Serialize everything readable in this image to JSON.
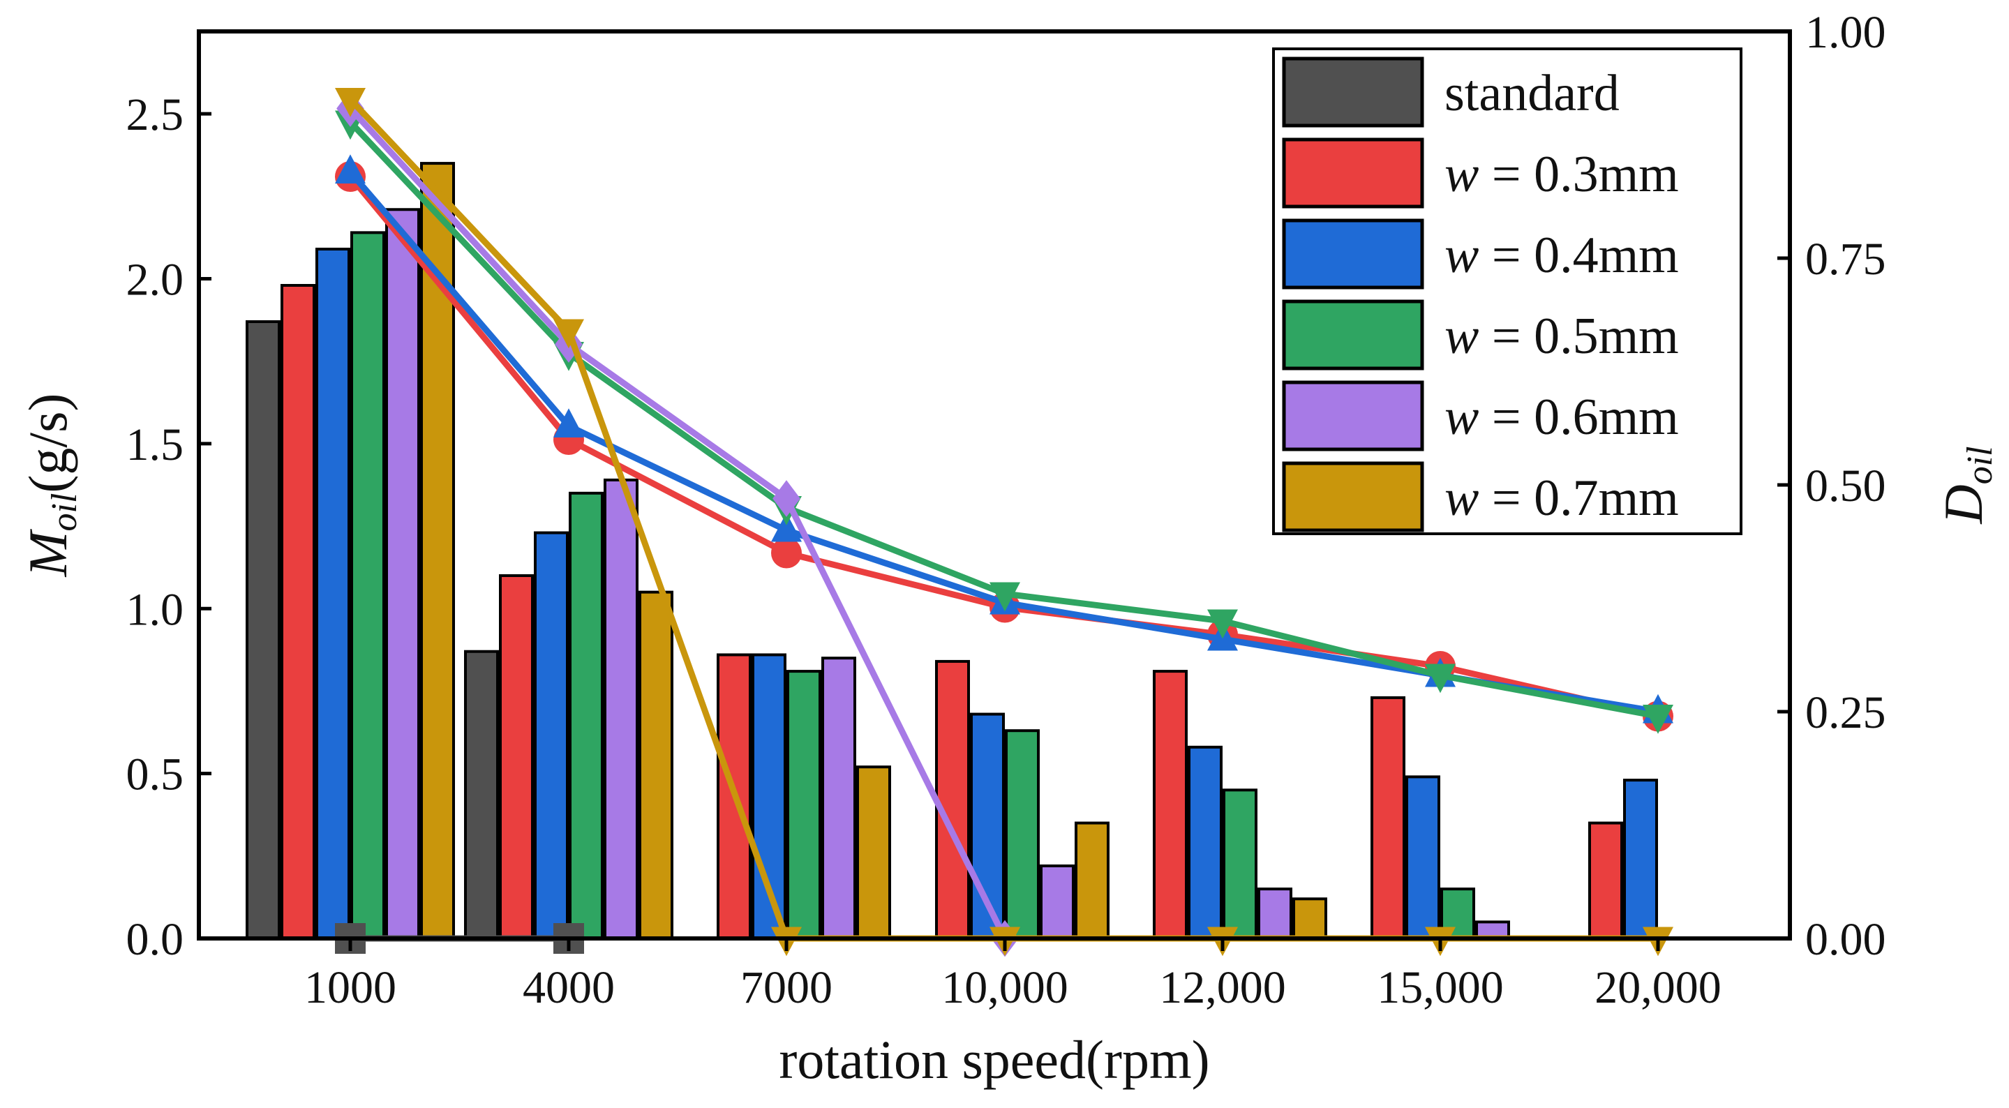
{
  "chart_data": {
    "type": "bar",
    "title": "",
    "categories": [
      "1000",
      "4000",
      "7000",
      "10,000",
      "12,000",
      "15,000",
      "20,000"
    ],
    "xlabel": "rotation speed(rpm)",
    "ylabel": {
      "main": "M",
      "sub": "oil",
      "unit": "(g/s)"
    },
    "y2label": {
      "main": "D",
      "sub": "oil"
    },
    "ylim": [
      0,
      2.75
    ],
    "y2lim": [
      0,
      1.0
    ],
    "yticks": [
      "0.0",
      "0.5",
      "1.0",
      "1.5",
      "2.0",
      "2.5"
    ],
    "y2ticks": [
      "0.00",
      "0.25",
      "0.50",
      "0.75",
      "1.00"
    ],
    "legend_position": "top-right",
    "series": [
      {
        "name": "standard",
        "legend_prefix": "",
        "legend_value": "standard",
        "color": "#505050",
        "bar_values": [
          1.87,
          0.87,
          0,
          0,
          0,
          0,
          0
        ],
        "line_values": [
          0,
          0,
          null,
          null,
          null,
          null,
          null
        ],
        "marker": "square"
      },
      {
        "name": "w = 0.3mm",
        "legend_prefix": "w",
        "legend_value": " = 0.3mm",
        "color": "#ea3f3f",
        "bar_values": [
          1.98,
          1.1,
          0.86,
          0.84,
          0.81,
          0.73,
          0.35
        ],
        "line_values": [
          0.84,
          0.55,
          0.425,
          0.365,
          0.335,
          0.3,
          0.245
        ],
        "marker": "circle"
      },
      {
        "name": "w = 0.4mm",
        "legend_prefix": "w",
        "legend_value": " = 0.4mm",
        "color": "#1f6bd6",
        "bar_values": [
          2.09,
          1.23,
          0.86,
          0.68,
          0.58,
          0.49,
          0.48
        ],
        "line_values": [
          0.845,
          0.565,
          0.45,
          0.37,
          0.33,
          0.29,
          0.25
        ],
        "marker": "triangle-up"
      },
      {
        "name": "w = 0.5mm",
        "legend_prefix": "w",
        "legend_value": " = 0.5mm",
        "color": "#2fa562",
        "bar_values": [
          2.14,
          1.35,
          0.81,
          0.63,
          0.45,
          0.15,
          0
        ],
        "line_values": [
          0.9,
          0.645,
          0.475,
          0.38,
          0.35,
          0.29,
          0.245
        ],
        "marker": "triangle-down"
      },
      {
        "name": "w = 0.6mm",
        "legend_prefix": "w",
        "legend_value": " = 0.6mm",
        "color": "#a77ae6",
        "bar_values": [
          2.21,
          1.39,
          0.85,
          0.22,
          0.15,
          0.05,
          0
        ],
        "line_values": [
          0.915,
          0.655,
          0.485,
          0.0,
          null,
          null,
          null
        ],
        "marker": "diamond"
      },
      {
        "name": "w = 0.7mm",
        "legend_prefix": "w",
        "legend_value": " = 0.7mm",
        "color": "#c9960c",
        "bar_values": [
          2.35,
          1.05,
          0.52,
          0.35,
          0.12,
          0,
          0
        ],
        "line_values": [
          0.925,
          0.67,
          0.0,
          0.0,
          0.0,
          0.0,
          0.0
        ],
        "marker": "triangle-down"
      }
    ]
  }
}
